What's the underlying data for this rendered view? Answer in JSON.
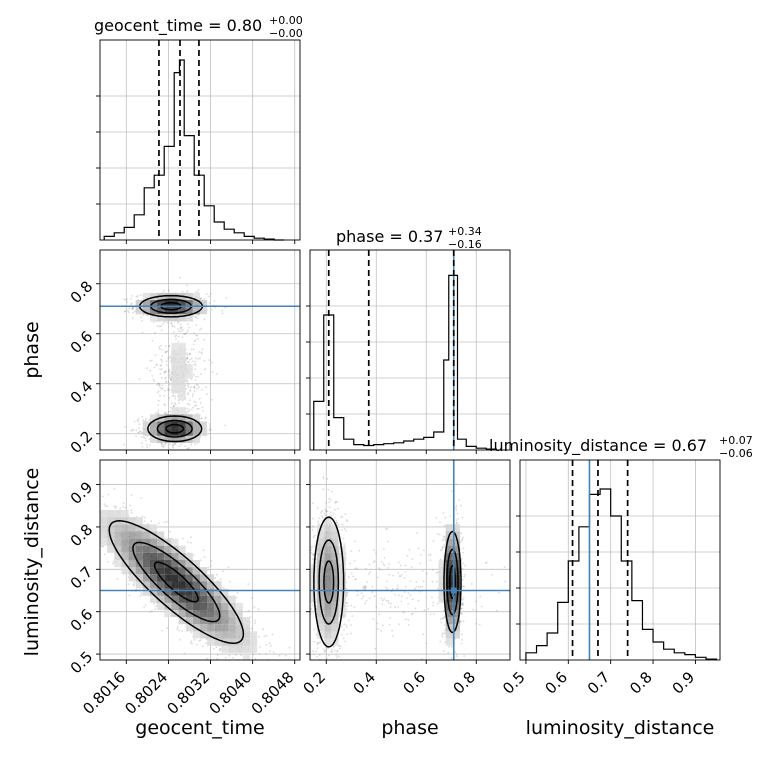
{
  "chart_data": {
    "type": "corner",
    "parameters": [
      "geocent_time",
      "phase",
      "luminosity_distance"
    ],
    "axis_labels": {
      "geocent_time": "geocent_time",
      "phase": "phase",
      "luminosity_distance": "luminosity_distance"
    },
    "titles": {
      "geocent_time": {
        "text": "geocent_time = 0.80",
        "sup": "+0.00",
        "sub": "−0.00"
      },
      "phase": {
        "text": "phase = 0.37",
        "sup": "+0.34",
        "sub": "−0.16"
      },
      "luminosity_distance": {
        "text": "luminosity_distance = 0.67",
        "sup": "+0.07",
        "sub": "−0.06"
      }
    },
    "ranges": {
      "geocent_time": [
        0.8011,
        0.8049
      ],
      "phase": [
        0.135,
        0.935
      ],
      "luminosity_distance": [
        0.486,
        0.958
      ]
    },
    "ticks": {
      "geocent_time": {
        "values": [
          0.8016,
          0.8024,
          0.8032,
          0.804,
          0.8048
        ],
        "labels": [
          "0.8016",
          "0.8024",
          "0.8032",
          "0.8040",
          "0.8048"
        ]
      },
      "phase": {
        "values": [
          0.2,
          0.4,
          0.6,
          0.8
        ],
        "labels": [
          "0.2",
          "0.4",
          "0.6",
          "0.8"
        ]
      },
      "luminosity_distance": {
        "values": [
          0.5,
          0.6,
          0.7,
          0.8,
          0.9
        ],
        "labels": [
          "0.5",
          "0.6",
          "0.7",
          "0.8",
          "0.9"
        ]
      }
    },
    "injection": {
      "phase": 0.71,
      "luminosity_distance": 0.65
    },
    "quantiles": {
      "geocent_time": [
        0.80222,
        0.80262,
        0.80298
      ],
      "phase": [
        0.21,
        0.37,
        0.71
      ],
      "luminosity_distance": [
        0.61,
        0.67,
        0.74
      ]
    },
    "histograms": {
      "geocent_time": {
        "bin_edges": [
          0.80118,
          0.80137,
          0.80156,
          0.80175,
          0.80194,
          0.80213,
          0.80232,
          0.80251,
          0.80261,
          0.8027,
          0.80289,
          0.80308,
          0.80327,
          0.80346,
          0.80365,
          0.80384,
          0.80403,
          0.80422,
          0.80441,
          0.8046
        ],
        "counts": [
          0.02,
          0.04,
          0.07,
          0.14,
          0.29,
          0.36,
          0.52,
          0.93,
          1.0,
          0.58,
          0.36,
          0.19,
          0.1,
          0.06,
          0.04,
          0.02,
          0.01,
          0.005,
          0.0
        ]
      },
      "phase": {
        "bin_edges": [
          0.15,
          0.19,
          0.23,
          0.27,
          0.31,
          0.35,
          0.39,
          0.43,
          0.47,
          0.51,
          0.55,
          0.59,
          0.63,
          0.67,
          0.69,
          0.725,
          0.76,
          0.8,
          0.84,
          0.88
        ],
        "counts": [
          0.27,
          0.75,
          0.18,
          0.06,
          0.03,
          0.025,
          0.03,
          0.035,
          0.04,
          0.05,
          0.06,
          0.07,
          0.1,
          0.5,
          0.97,
          0.06,
          0.02,
          0.01,
          0.005
        ]
      },
      "luminosity_distance": {
        "bin_edges": [
          0.5,
          0.525,
          0.55,
          0.575,
          0.6,
          0.625,
          0.65,
          0.675,
          0.7,
          0.725,
          0.75,
          0.775,
          0.8,
          0.825,
          0.85,
          0.875,
          0.9,
          0.925,
          0.95
        ],
        "counts": [
          0.04,
          0.08,
          0.15,
          0.32,
          0.55,
          0.74,
          0.92,
          0.95,
          0.8,
          0.55,
          0.33,
          0.17,
          0.1,
          0.06,
          0.04,
          0.03,
          0.015,
          0.005
        ]
      }
    },
    "joint_modes": {
      "phase_vs_geocent_time": [
        {
          "x": 0.80245,
          "y": 0.71,
          "sx": 0.00035,
          "sy": 0.025,
          "n": 700
        },
        {
          "x": 0.80252,
          "y": 0.22,
          "sx": 0.0003,
          "sy": 0.03,
          "n": 700
        },
        {
          "x": 0.8026,
          "y": 0.45,
          "sx": 0.00025,
          "sy": 0.13,
          "n": 400
        }
      ],
      "luminosity_distance_vs_geocent_time": [
        {
          "x": 0.80255,
          "y": 0.67,
          "sx": 0.00075,
          "sy": 0.085,
          "rho": -0.85,
          "n": 1600
        }
      ],
      "luminosity_distance_vs_phase": [
        {
          "x": 0.21,
          "y": 0.67,
          "sx": 0.035,
          "sy": 0.09,
          "n": 800
        },
        {
          "x": 0.705,
          "y": 0.67,
          "sx": 0.02,
          "sy": 0.07,
          "n": 800
        },
        {
          "x": 0.45,
          "y": 0.66,
          "sx": 0.2,
          "sy": 0.06,
          "n": 250
        }
      ]
    },
    "grid": true,
    "colors": {
      "injection": "#4682b4",
      "contour": "#000000",
      "scatter": "#999999",
      "grid": "#c0c0c0"
    }
  }
}
